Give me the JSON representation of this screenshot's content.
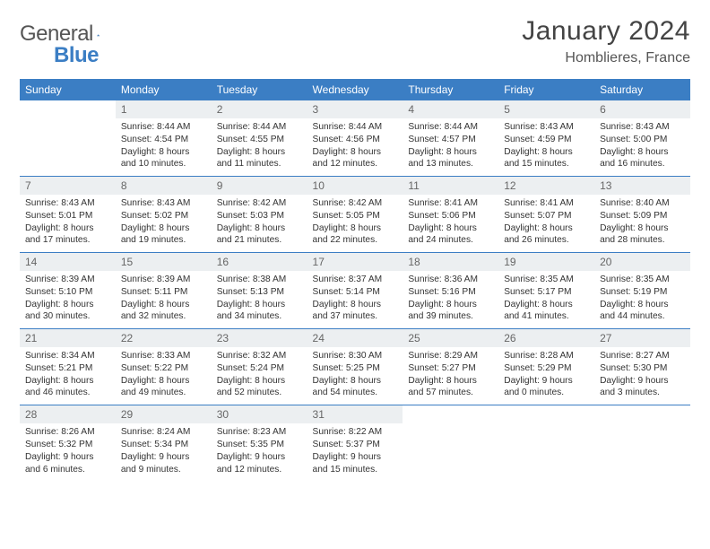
{
  "brand": {
    "name1": "General",
    "name2": "Blue"
  },
  "title": "January 2024",
  "location": "Homblieres, France",
  "weekdays": [
    "Sunday",
    "Monday",
    "Tuesday",
    "Wednesday",
    "Thursday",
    "Friday",
    "Saturday"
  ],
  "colors": {
    "header_bg": "#3b7ec4",
    "header_text": "#ffffff",
    "daynum_bg": "#eceff1",
    "text": "#333333",
    "border": "#3b7ec4"
  },
  "font": {
    "family": "Arial",
    "day_fontsize": 12,
    "cell_fontsize": 10.2,
    "title_fontsize": 30,
    "location_fontsize": 16
  },
  "start_offset": 1,
  "days": [
    {
      "n": "1",
      "sunrise": "8:44 AM",
      "sunset": "4:54 PM",
      "daylight": "8 hours and 10 minutes."
    },
    {
      "n": "2",
      "sunrise": "8:44 AM",
      "sunset": "4:55 PM",
      "daylight": "8 hours and 11 minutes."
    },
    {
      "n": "3",
      "sunrise": "8:44 AM",
      "sunset": "4:56 PM",
      "daylight": "8 hours and 12 minutes."
    },
    {
      "n": "4",
      "sunrise": "8:44 AM",
      "sunset": "4:57 PM",
      "daylight": "8 hours and 13 minutes."
    },
    {
      "n": "5",
      "sunrise": "8:43 AM",
      "sunset": "4:59 PM",
      "daylight": "8 hours and 15 minutes."
    },
    {
      "n": "6",
      "sunrise": "8:43 AM",
      "sunset": "5:00 PM",
      "daylight": "8 hours and 16 minutes."
    },
    {
      "n": "7",
      "sunrise": "8:43 AM",
      "sunset": "5:01 PM",
      "daylight": "8 hours and 17 minutes."
    },
    {
      "n": "8",
      "sunrise": "8:43 AM",
      "sunset": "5:02 PM",
      "daylight": "8 hours and 19 minutes."
    },
    {
      "n": "9",
      "sunrise": "8:42 AM",
      "sunset": "5:03 PM",
      "daylight": "8 hours and 21 minutes."
    },
    {
      "n": "10",
      "sunrise": "8:42 AM",
      "sunset": "5:05 PM",
      "daylight": "8 hours and 22 minutes."
    },
    {
      "n": "11",
      "sunrise": "8:41 AM",
      "sunset": "5:06 PM",
      "daylight": "8 hours and 24 minutes."
    },
    {
      "n": "12",
      "sunrise": "8:41 AM",
      "sunset": "5:07 PM",
      "daylight": "8 hours and 26 minutes."
    },
    {
      "n": "13",
      "sunrise": "8:40 AM",
      "sunset": "5:09 PM",
      "daylight": "8 hours and 28 minutes."
    },
    {
      "n": "14",
      "sunrise": "8:39 AM",
      "sunset": "5:10 PM",
      "daylight": "8 hours and 30 minutes."
    },
    {
      "n": "15",
      "sunrise": "8:39 AM",
      "sunset": "5:11 PM",
      "daylight": "8 hours and 32 minutes."
    },
    {
      "n": "16",
      "sunrise": "8:38 AM",
      "sunset": "5:13 PM",
      "daylight": "8 hours and 34 minutes."
    },
    {
      "n": "17",
      "sunrise": "8:37 AM",
      "sunset": "5:14 PM",
      "daylight": "8 hours and 37 minutes."
    },
    {
      "n": "18",
      "sunrise": "8:36 AM",
      "sunset": "5:16 PM",
      "daylight": "8 hours and 39 minutes."
    },
    {
      "n": "19",
      "sunrise": "8:35 AM",
      "sunset": "5:17 PM",
      "daylight": "8 hours and 41 minutes."
    },
    {
      "n": "20",
      "sunrise": "8:35 AM",
      "sunset": "5:19 PM",
      "daylight": "8 hours and 44 minutes."
    },
    {
      "n": "21",
      "sunrise": "8:34 AM",
      "sunset": "5:21 PM",
      "daylight": "8 hours and 46 minutes."
    },
    {
      "n": "22",
      "sunrise": "8:33 AM",
      "sunset": "5:22 PM",
      "daylight": "8 hours and 49 minutes."
    },
    {
      "n": "23",
      "sunrise": "8:32 AM",
      "sunset": "5:24 PM",
      "daylight": "8 hours and 52 minutes."
    },
    {
      "n": "24",
      "sunrise": "8:30 AM",
      "sunset": "5:25 PM",
      "daylight": "8 hours and 54 minutes."
    },
    {
      "n": "25",
      "sunrise": "8:29 AM",
      "sunset": "5:27 PM",
      "daylight": "8 hours and 57 minutes."
    },
    {
      "n": "26",
      "sunrise": "8:28 AM",
      "sunset": "5:29 PM",
      "daylight": "9 hours and 0 minutes."
    },
    {
      "n": "27",
      "sunrise": "8:27 AM",
      "sunset": "5:30 PM",
      "daylight": "9 hours and 3 minutes."
    },
    {
      "n": "28",
      "sunrise": "8:26 AM",
      "sunset": "5:32 PM",
      "daylight": "9 hours and 6 minutes."
    },
    {
      "n": "29",
      "sunrise": "8:24 AM",
      "sunset": "5:34 PM",
      "daylight": "9 hours and 9 minutes."
    },
    {
      "n": "30",
      "sunrise": "8:23 AM",
      "sunset": "5:35 PM",
      "daylight": "9 hours and 12 minutes."
    },
    {
      "n": "31",
      "sunrise": "8:22 AM",
      "sunset": "5:37 PM",
      "daylight": "9 hours and 15 minutes."
    }
  ],
  "labels": {
    "sunrise": "Sunrise:",
    "sunset": "Sunset:",
    "daylight": "Daylight:"
  }
}
